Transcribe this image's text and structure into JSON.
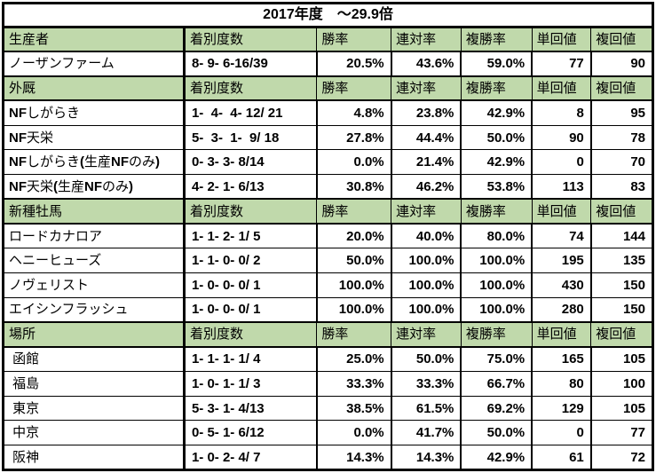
{
  "title": "2017年度　～29.9倍",
  "columns": [
    "着別度数",
    "勝率",
    "連対率",
    "複勝率",
    "単回値",
    "複回値"
  ],
  "colors": {
    "header_bg": "#c0d9ab",
    "marquee_green": "#2e7d32",
    "grid": "#000000",
    "text": "#000000",
    "background": "#ffffff"
  },
  "sections": [
    {
      "name": "生産者",
      "rows": [
        {
          "label": "ノーザンファーム",
          "record": "8- 9- 6-16/39",
          "win_rate": "20.5%",
          "quinella_rate": "43.6%",
          "show_rate": "59.0%",
          "win_roi": "77",
          "show_roi": "90"
        }
      ]
    },
    {
      "name": "外厩",
      "rows": [
        {
          "label": "NFしがらき",
          "record": "1-  4-  4- 12/ 21",
          "win_rate": "4.8%",
          "quinella_rate": "23.8%",
          "show_rate": "42.9%",
          "win_roi": "8",
          "show_roi": "95"
        },
        {
          "label": "NF天栄",
          "record": "5-  3-  1-  9/ 18",
          "win_rate": "27.8%",
          "quinella_rate": "44.4%",
          "show_rate": "50.0%",
          "win_roi": "90",
          "show_roi": "78"
        },
        {
          "label": "NFしがらき(生産NFのみ)",
          "record": "0- 3- 3- 8/14",
          "win_rate": "0.0%",
          "quinella_rate": "21.4%",
          "show_rate": "42.9%",
          "win_roi": "0",
          "show_roi": "70"
        },
        {
          "label": "NF天栄(生産NFのみ)",
          "record": "4- 2- 1- 6/13",
          "win_rate": "30.8%",
          "quinella_rate": "46.2%",
          "show_rate": "53.8%",
          "win_roi": "113",
          "show_roi": "83"
        }
      ]
    },
    {
      "name": "新種牡馬",
      "selected": true,
      "rows": [
        {
          "label": "ロードカナロア",
          "record": "1- 1- 2- 1/ 5",
          "win_rate": "20.0%",
          "quinella_rate": "40.0%",
          "show_rate": "80.0%",
          "win_roi": "74",
          "show_roi": "144"
        },
        {
          "label": "ヘニーヒューズ",
          "record": "1- 1- 0- 0/ 2",
          "win_rate": "50.0%",
          "quinella_rate": "100.0%",
          "show_rate": "100.0%",
          "win_roi": "195",
          "show_roi": "135"
        },
        {
          "label": "ノヴェリスト",
          "record": "1- 0- 0- 0/ 1",
          "win_rate": "100.0%",
          "quinella_rate": "100.0%",
          "show_rate": "100.0%",
          "win_roi": "430",
          "show_roi": "150"
        },
        {
          "label": "エイシンフラッシュ",
          "record": "1- 0- 0- 0/ 1",
          "win_rate": "100.0%",
          "quinella_rate": "100.0%",
          "show_rate": "100.0%",
          "win_roi": "280",
          "show_roi": "150"
        }
      ]
    },
    {
      "name": "場所",
      "rows": [
        {
          "label": " 函館",
          "record": "1- 1- 1- 1/ 4",
          "win_rate": "25.0%",
          "quinella_rate": "50.0%",
          "show_rate": "75.0%",
          "win_roi": "165",
          "show_roi": "105"
        },
        {
          "label": " 福島",
          "record": "1- 0- 1- 1/ 3",
          "win_rate": "33.3%",
          "quinella_rate": "33.3%",
          "show_rate": "66.7%",
          "win_roi": "80",
          "show_roi": "100"
        },
        {
          "label": " 東京",
          "record": "5- 3- 1- 4/13",
          "win_rate": "38.5%",
          "quinella_rate": "61.5%",
          "show_rate": "69.2%",
          "win_roi": "129",
          "show_roi": "105"
        },
        {
          "label": " 中京",
          "record": "0- 5- 1- 6/12",
          "win_rate": "0.0%",
          "quinella_rate": "41.7%",
          "show_rate": "50.0%",
          "win_roi": "0",
          "show_roi": "77"
        },
        {
          "label": " 阪神",
          "record": "1- 0- 2- 4/ 7",
          "win_rate": "14.3%",
          "quinella_rate": "14.3%",
          "show_rate": "42.9%",
          "win_roi": "61",
          "show_roi": "72"
        }
      ]
    }
  ]
}
